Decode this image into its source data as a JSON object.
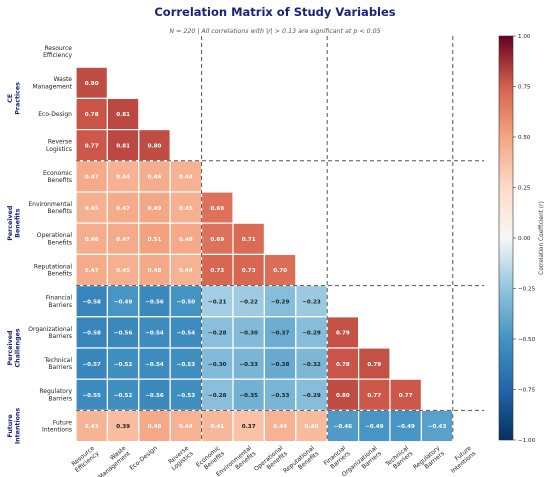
{
  "chart_data": {
    "type": "heatmap",
    "title": "Correlation Matrix of Study Variables",
    "subtitle": "N = 220  |  All correlations with |r| > 0.13 are significant at p < 0.05",
    "row_labels": [
      [
        "Resource",
        "Efficiency"
      ],
      [
        "Waste",
        "Management"
      ],
      [
        "Eco-Design"
      ],
      [
        "Reverse",
        "Logistics"
      ],
      [
        "Economic",
        "Benefits"
      ],
      [
        "Environmental",
        "Benefits"
      ],
      [
        "Operational",
        "Benefits"
      ],
      [
        "Reputational",
        "Benefits"
      ],
      [
        "Financial",
        "Barriers"
      ],
      [
        "Organizational",
        "Barriers"
      ],
      [
        "Technical",
        "Barriers"
      ],
      [
        "Regulatory",
        "Barriers"
      ],
      [
        "Future",
        "Intentions"
      ]
    ],
    "col_labels": [
      [
        "Resource",
        "Efficiency"
      ],
      [
        "Waste",
        "Management"
      ],
      [
        "Eco-Design"
      ],
      [
        "Reverse",
        "Logistics"
      ],
      [
        "Economic",
        "Benefits"
      ],
      [
        "Environmental",
        "Benefits"
      ],
      [
        "Operational",
        "Benefits"
      ],
      [
        "Reputational",
        "Benefits"
      ],
      [
        "Financial",
        "Barriers"
      ],
      [
        "Organizational",
        "Barriers"
      ],
      [
        "Technical",
        "Barriers"
      ],
      [
        "Regulatory",
        "Barriers"
      ],
      [
        "Future",
        "Intentions"
      ]
    ],
    "groups": [
      {
        "label": [
          "CE",
          "Practices"
        ],
        "start": 0,
        "end": 3
      },
      {
        "label": [
          "Perceived",
          "Benefits"
        ],
        "start": 4,
        "end": 7
      },
      {
        "label": [
          "Perceived",
          "Challenges"
        ],
        "start": 8,
        "end": 11
      },
      {
        "label": [
          "Future",
          "Intentions"
        ],
        "start": 12,
        "end": 12
      }
    ],
    "values": [
      [],
      [
        0.8
      ],
      [
        0.78,
        0.81
      ],
      [
        0.77,
        0.81,
        0.8
      ],
      [
        0.47,
        0.44,
        0.46,
        0.44
      ],
      [
        0.45,
        0.47,
        0.49,
        0.45,
        0.69
      ],
      [
        0.46,
        0.47,
        0.51,
        0.48,
        0.69,
        0.71
      ],
      [
        0.47,
        0.45,
        0.48,
        0.44,
        0.73,
        0.73,
        0.7
      ],
      [
        -0.58,
        -0.49,
        -0.56,
        -0.5,
        -0.21,
        -0.22,
        -0.29,
        -0.23
      ],
      [
        -0.58,
        -0.56,
        -0.54,
        -0.54,
        -0.28,
        -0.3,
        -0.37,
        -0.29,
        0.79
      ],
      [
        -0.57,
        -0.52,
        -0.54,
        -0.53,
        -0.3,
        -0.33,
        -0.38,
        -0.32,
        0.78,
        0.79
      ],
      [
        -0.55,
        -0.52,
        -0.56,
        -0.53,
        -0.28,
        -0.35,
        -0.33,
        -0.29,
        0.8,
        0.77,
        0.77
      ],
      [
        0.43,
        0.39,
        0.48,
        0.44,
        0.41,
        0.37,
        0.44,
        0.4,
        -0.46,
        -0.49,
        -0.49,
        -0.43
      ]
    ],
    "colorscale": "RdBu_r",
    "vmin": -1.0,
    "vmax": 1.0,
    "colorbar": {
      "label": "Correlation Coefficient (r)",
      "ticks": [
        "1.00",
        "0.75",
        "0.50",
        "0.25",
        "0.00",
        "−0.25",
        "−0.50",
        "−0.75",
        "−1.00"
      ],
      "tick_values": [
        1.0,
        0.75,
        0.5,
        0.25,
        0.0,
        -0.25,
        -0.5,
        -0.75,
        -1.0
      ]
    },
    "colors": {
      "title": "#1a237e",
      "group_label": "#1a237e",
      "divider": "#555555"
    }
  }
}
